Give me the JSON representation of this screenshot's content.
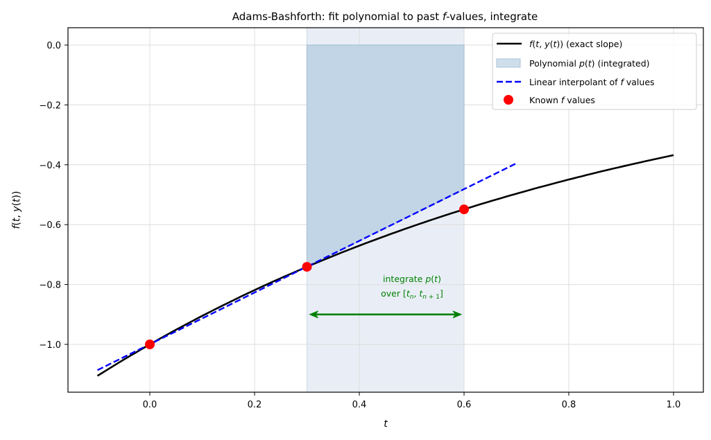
{
  "chart_data": {
    "type": "line",
    "title": "Adams-Bashforth: fit polynomial to past f-values, integrate",
    "xlabel": "t",
    "ylabel": "f(t, y(t))",
    "xlim": [
      -0.15,
      1.05
    ],
    "ylim": [
      -1.16,
      0.055
    ],
    "grid": true,
    "legend_position": "upper right",
    "xticks": [
      0.0,
      0.2,
      0.4,
      0.6,
      0.8,
      1.0
    ],
    "xtick_labels": [
      "0.0",
      "0.2",
      "0.4",
      "0.6",
      "0.8",
      "1.0"
    ],
    "yticks": [
      0.0,
      -0.2,
      -0.4,
      -0.6,
      -0.8,
      -1.0
    ],
    "ytick_labels": [
      "0.0",
      "−0.2",
      "−0.4",
      "−0.6",
      "−0.8",
      "−1.0"
    ],
    "series": [
      {
        "name": "f(t, y(t)) (exact slope)",
        "kind": "line",
        "color": "#000000",
        "x": [
          -0.1,
          0.0,
          0.1,
          0.2,
          0.3,
          0.4,
          0.5,
          0.6,
          0.7,
          0.8,
          0.9,
          1.0
        ],
        "values": [
          -1.105,
          -1.0,
          -0.905,
          -0.819,
          -0.741,
          -0.67,
          -0.607,
          -0.549,
          -0.497,
          -0.449,
          -0.407,
          -0.368
        ]
      },
      {
        "name": "Linear interpolant of f values",
        "kind": "dashed-line",
        "color": "#0000ff",
        "x": [
          -0.1,
          0.7
        ],
        "values": [
          -1.086,
          -0.395
        ]
      },
      {
        "name": "Known f values",
        "kind": "scatter",
        "color": "#ff0000",
        "x": [
          0.0,
          0.3,
          0.6
        ],
        "values": [
          -1.0,
          -0.741,
          -0.549
        ]
      },
      {
        "name": "Polynomial p(t) (integrated)",
        "kind": "area",
        "color": "#a6c2da",
        "x": [
          0.3,
          0.6
        ],
        "upper": [
          0.0,
          0.0
        ],
        "lower": [
          -0.741,
          -0.482
        ]
      }
    ],
    "highlight_band": {
      "x_range": [
        0.3,
        0.6
      ],
      "color": "#e9eef6"
    },
    "annotations": [
      {
        "text_line1": "integrate p(t)",
        "text_line2": "over [t_n, t_n+1]",
        "x": 0.5,
        "y": -0.82,
        "color": "#008000"
      },
      {
        "type": "double-arrow",
        "x_from": 0.3,
        "x_to": 0.6,
        "y": -0.9,
        "color": "#008000"
      }
    ]
  },
  "legend": {
    "items": [
      {
        "label": "f(t, y(t)) (exact slope)"
      },
      {
        "label": "Polynomial p(t) (integrated)"
      },
      {
        "label": "Linear interpolant of f values"
      },
      {
        "label": "Known f values"
      }
    ]
  }
}
